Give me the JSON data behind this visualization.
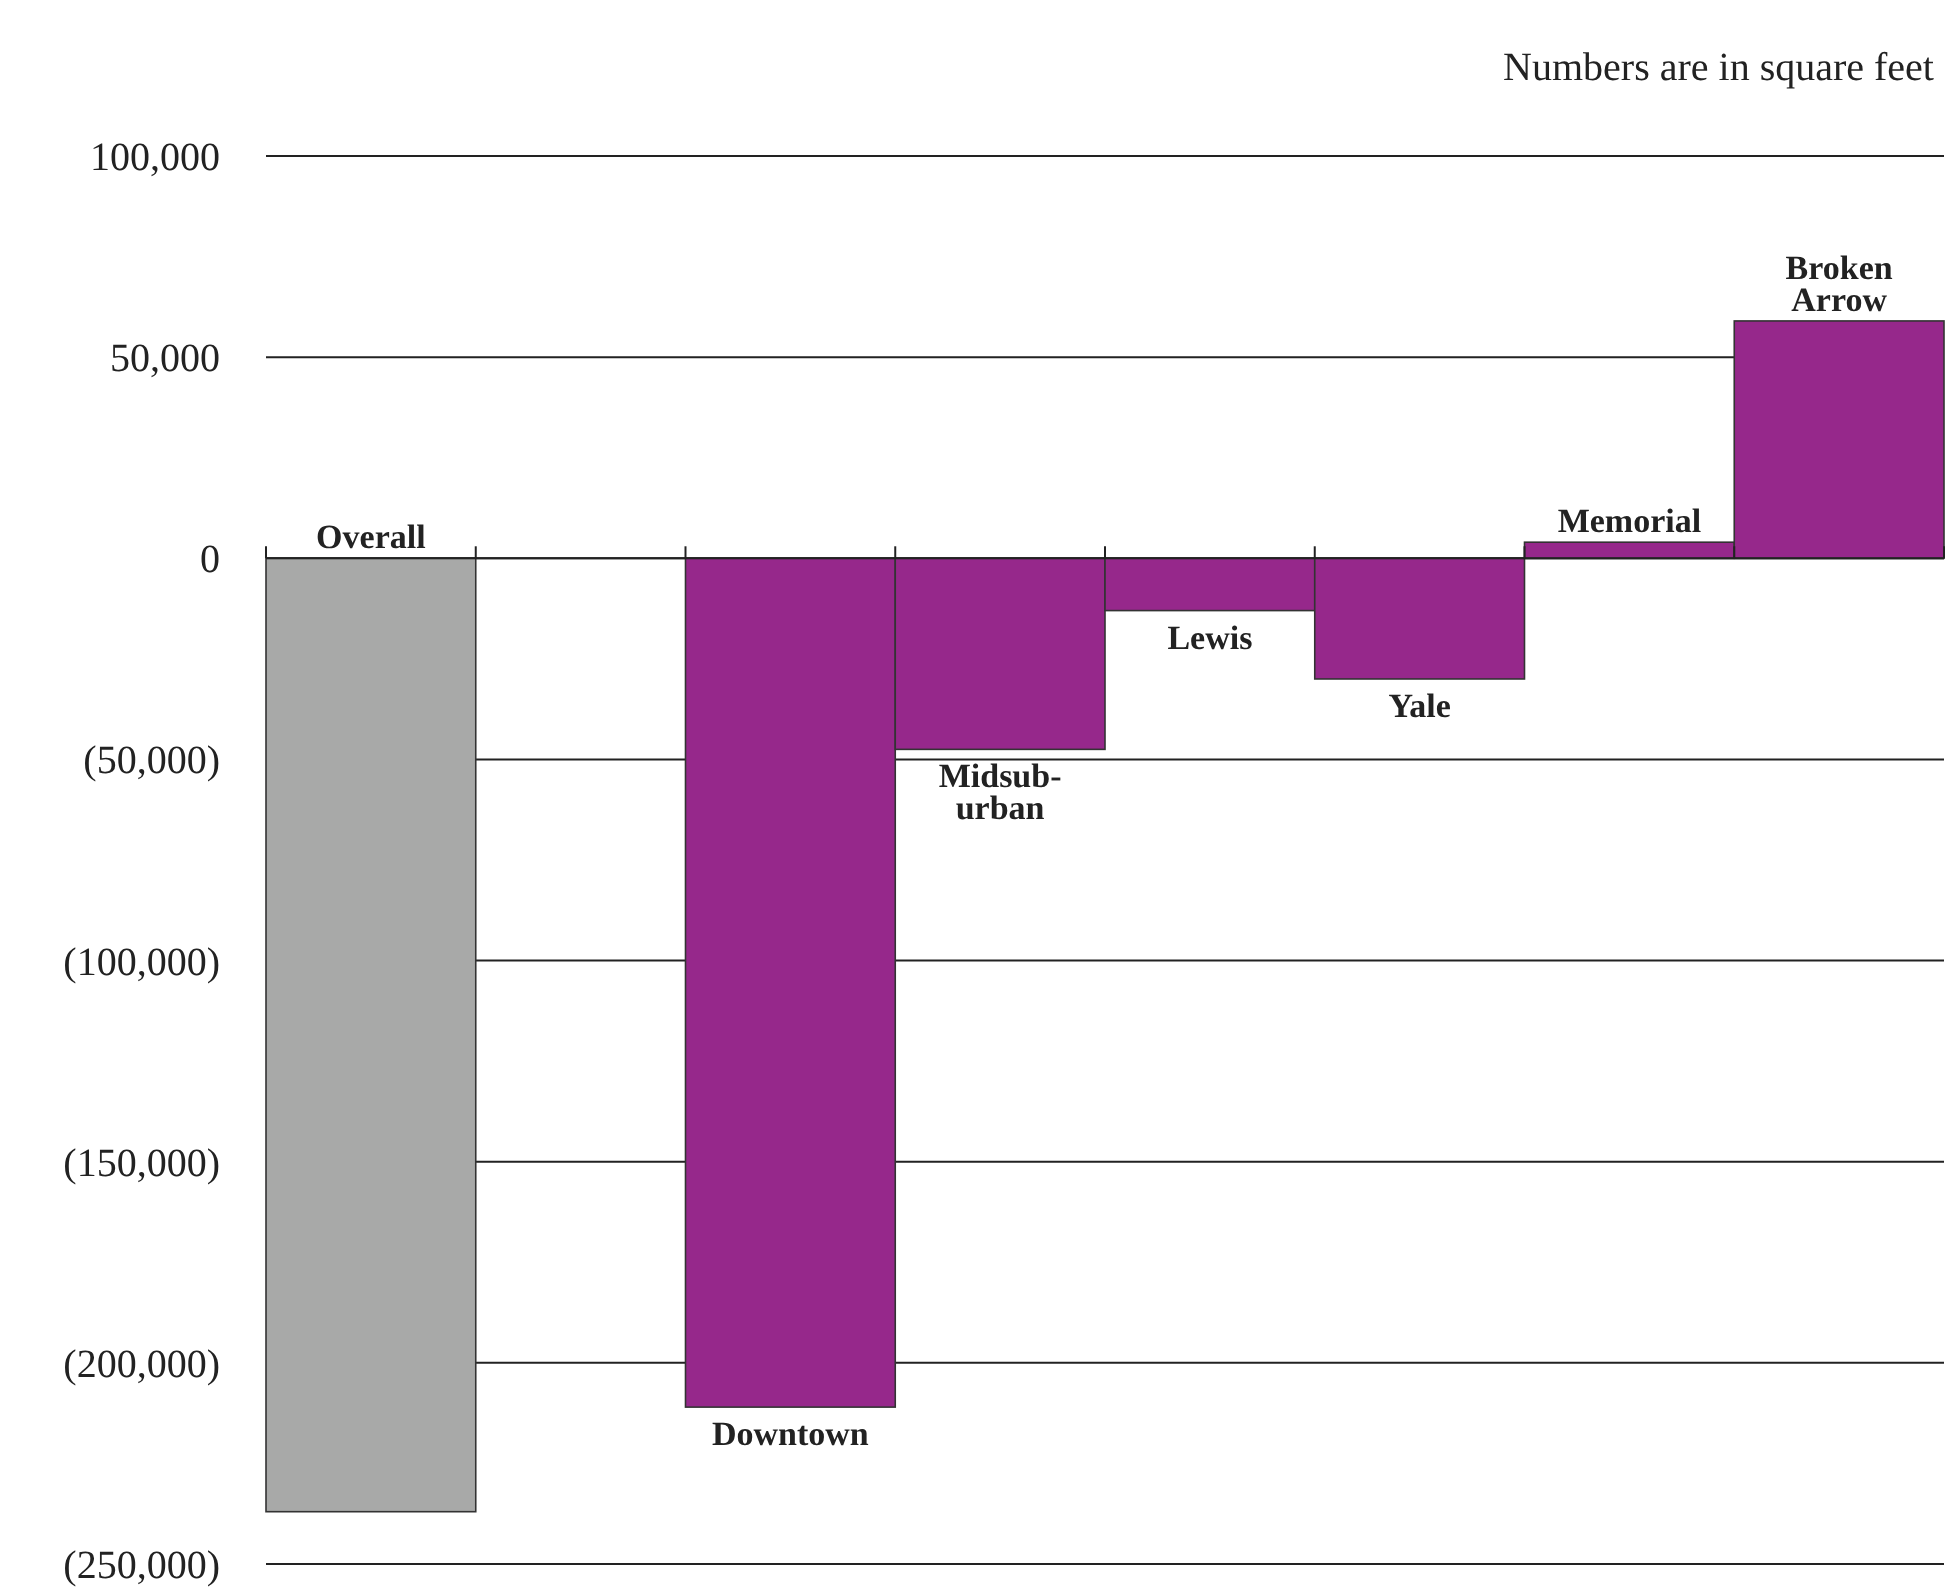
{
  "chart_data": {
    "type": "bar",
    "categories": [
      "Overall",
      null,
      "Downtown",
      "Midsub-urban",
      "Lewis",
      "Yale",
      "Memorial",
      "Broken Arrow"
    ],
    "values": [
      -237000,
      null,
      -211000,
      -47500,
      -13000,
      -30000,
      4000,
      59000
    ],
    "colors": [
      "#a8a9a8",
      null,
      "#96288b",
      "#96288b",
      "#96288b",
      "#96288b",
      "#96288b",
      "#96288b"
    ],
    "ylim": [
      -250000,
      100000
    ],
    "yticks": [
      {
        "value": 100000,
        "label": "100,000"
      },
      {
        "value": 50000,
        "label": "50,000"
      },
      0,
      {
        "value": -50000,
        "label": "(50,000)"
      },
      {
        "value": -100000,
        "label": "(100,000)"
      },
      {
        "value": -150000,
        "label": "(150,000)"
      },
      {
        "value": -200000,
        "label": "(200,000)"
      },
      {
        "value": -250000,
        "label": "(250,000)"
      }
    ],
    "grid": "y",
    "annotations": [
      "Numbers are in square feet"
    ]
  }
}
